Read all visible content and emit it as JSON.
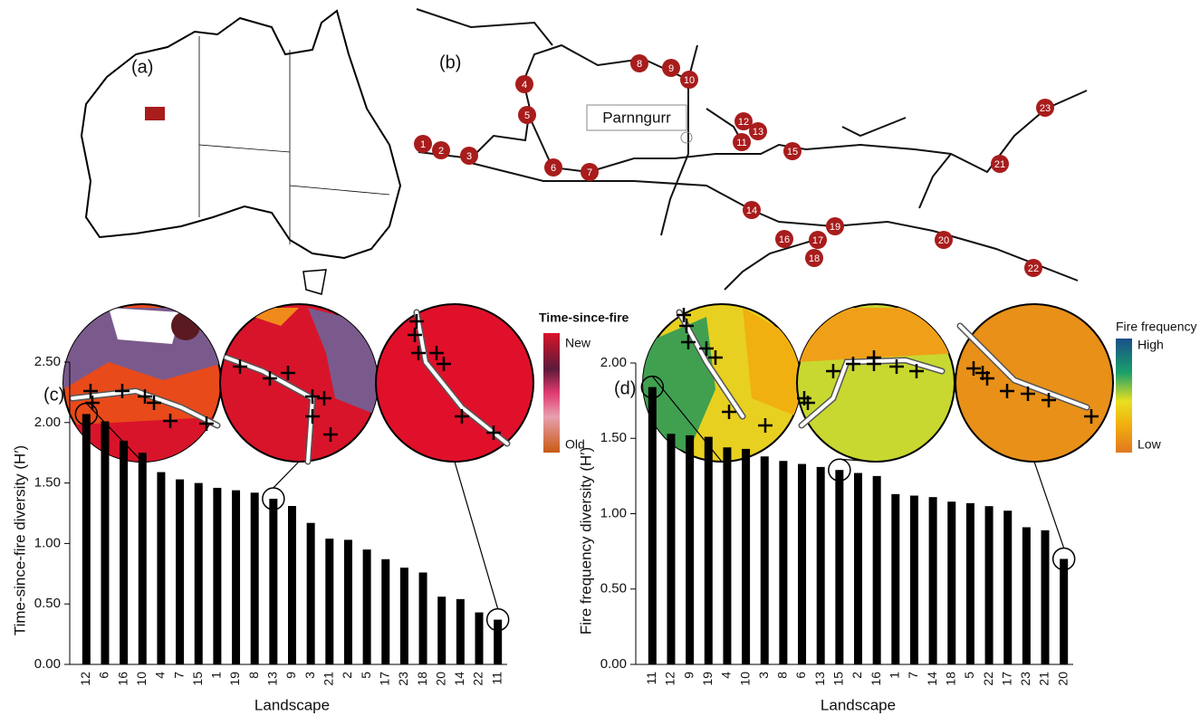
{
  "figure": {
    "panel_labels": [
      "(a)",
      "(b)",
      "(c)",
      "(d)"
    ],
    "map_b": {
      "place": "Parnngurr",
      "sites": [
        "1",
        "2",
        "3",
        "4",
        "5",
        "6",
        "7",
        "8",
        "9",
        "10",
        "11",
        "12",
        "13",
        "14",
        "15",
        "16",
        "17",
        "18",
        "19",
        "20",
        "21",
        "22",
        "23"
      ]
    },
    "legends": [
      {
        "title": "Time-since-fire",
        "labels": [
          "New",
          "Old"
        ]
      },
      {
        "title": "Fire frequency",
        "labels": [
          "High",
          "Low"
        ]
      }
    ]
  },
  "chart_data": [
    {
      "type": "bar",
      "ylabel": "Time-since-fire diversity (H′)",
      "xlabel": "Landscape",
      "color": "#000000",
      "categories": [
        "12",
        "6",
        "16",
        "10",
        "4",
        "7",
        "15",
        "1",
        "19",
        "8",
        "13",
        "9",
        "3",
        "21",
        "2",
        "5",
        "17",
        "23",
        "18",
        "20",
        "14",
        "22",
        "11"
      ],
      "values": [
        2.07,
        2.01,
        1.85,
        1.75,
        1.59,
        1.53,
        1.5,
        1.46,
        1.44,
        1.42,
        1.37,
        1.31,
        1.17,
        1.04,
        1.03,
        0.95,
        0.87,
        0.8,
        0.76,
        0.56,
        0.54,
        0.43,
        0.37
      ],
      "ylim": [
        0,
        2.5
      ],
      "yticks": [
        {
          "value": 0,
          "label": "0.00"
        },
        {
          "value": 0.5,
          "label": "0.50"
        },
        {
          "value": 1,
          "label": "1.00"
        },
        {
          "value": 1.5,
          "label": "1.50"
        },
        {
          "value": 2,
          "label": "2.00"
        },
        {
          "value": 2.5,
          "label": "2.50"
        }
      ]
    },
    {
      "type": "bar",
      "ylabel": "Fire frequency diversity (H′)",
      "xlabel": "Landscape",
      "color": "#000000",
      "categories": [
        "11",
        "12",
        "9",
        "19",
        "4",
        "10",
        "3",
        "8",
        "6",
        "13",
        "15",
        "2",
        "16",
        "1",
        "7",
        "14",
        "18",
        "5",
        "22",
        "17",
        "23",
        "21",
        "20"
      ],
      "values": [
        1.84,
        1.53,
        1.52,
        1.51,
        1.44,
        1.43,
        1.38,
        1.35,
        1.33,
        1.31,
        1.29,
        1.27,
        1.25,
        1.13,
        1.12,
        1.11,
        1.08,
        1.07,
        1.05,
        1.02,
        0.91,
        0.89,
        0.7
      ],
      "ylim": [
        0,
        2
      ],
      "yticks": [
        {
          "value": 0,
          "label": "0.00"
        },
        {
          "value": 0.5,
          "label": "0.50"
        },
        {
          "value": 1,
          "label": "1.00"
        },
        {
          "value": 1.5,
          "label": "1.50"
        },
        {
          "value": 2,
          "label": "2.00"
        }
      ]
    }
  ]
}
